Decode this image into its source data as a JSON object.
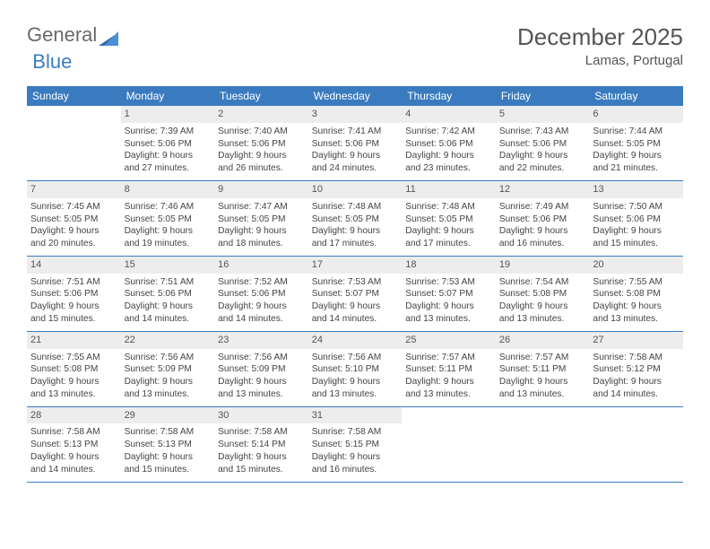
{
  "logo": {
    "part1": "General",
    "part2": "Blue"
  },
  "title": "December 2025",
  "location": "Lamas, Portugal",
  "colors": {
    "header_bg": "#3a7bbf",
    "daynum_bg": "#ededed",
    "rule": "#3a7bbf",
    "text": "#444444"
  },
  "daynames": [
    "Sunday",
    "Monday",
    "Tuesday",
    "Wednesday",
    "Thursday",
    "Friday",
    "Saturday"
  ],
  "weeks": [
    [
      null,
      {
        "n": "1",
        "sr": "Sunrise: 7:39 AM",
        "ss": "Sunset: 5:06 PM",
        "d1": "Daylight: 9 hours",
        "d2": "and 27 minutes."
      },
      {
        "n": "2",
        "sr": "Sunrise: 7:40 AM",
        "ss": "Sunset: 5:06 PM",
        "d1": "Daylight: 9 hours",
        "d2": "and 26 minutes."
      },
      {
        "n": "3",
        "sr": "Sunrise: 7:41 AM",
        "ss": "Sunset: 5:06 PM",
        "d1": "Daylight: 9 hours",
        "d2": "and 24 minutes."
      },
      {
        "n": "4",
        "sr": "Sunrise: 7:42 AM",
        "ss": "Sunset: 5:06 PM",
        "d1": "Daylight: 9 hours",
        "d2": "and 23 minutes."
      },
      {
        "n": "5",
        "sr": "Sunrise: 7:43 AM",
        "ss": "Sunset: 5:06 PM",
        "d1": "Daylight: 9 hours",
        "d2": "and 22 minutes."
      },
      {
        "n": "6",
        "sr": "Sunrise: 7:44 AM",
        "ss": "Sunset: 5:05 PM",
        "d1": "Daylight: 9 hours",
        "d2": "and 21 minutes."
      }
    ],
    [
      {
        "n": "7",
        "sr": "Sunrise: 7:45 AM",
        "ss": "Sunset: 5:05 PM",
        "d1": "Daylight: 9 hours",
        "d2": "and 20 minutes."
      },
      {
        "n": "8",
        "sr": "Sunrise: 7:46 AM",
        "ss": "Sunset: 5:05 PM",
        "d1": "Daylight: 9 hours",
        "d2": "and 19 minutes."
      },
      {
        "n": "9",
        "sr": "Sunrise: 7:47 AM",
        "ss": "Sunset: 5:05 PM",
        "d1": "Daylight: 9 hours",
        "d2": "and 18 minutes."
      },
      {
        "n": "10",
        "sr": "Sunrise: 7:48 AM",
        "ss": "Sunset: 5:05 PM",
        "d1": "Daylight: 9 hours",
        "d2": "and 17 minutes."
      },
      {
        "n": "11",
        "sr": "Sunrise: 7:48 AM",
        "ss": "Sunset: 5:05 PM",
        "d1": "Daylight: 9 hours",
        "d2": "and 17 minutes."
      },
      {
        "n": "12",
        "sr": "Sunrise: 7:49 AM",
        "ss": "Sunset: 5:06 PM",
        "d1": "Daylight: 9 hours",
        "d2": "and 16 minutes."
      },
      {
        "n": "13",
        "sr": "Sunrise: 7:50 AM",
        "ss": "Sunset: 5:06 PM",
        "d1": "Daylight: 9 hours",
        "d2": "and 15 minutes."
      }
    ],
    [
      {
        "n": "14",
        "sr": "Sunrise: 7:51 AM",
        "ss": "Sunset: 5:06 PM",
        "d1": "Daylight: 9 hours",
        "d2": "and 15 minutes."
      },
      {
        "n": "15",
        "sr": "Sunrise: 7:51 AM",
        "ss": "Sunset: 5:06 PM",
        "d1": "Daylight: 9 hours",
        "d2": "and 14 minutes."
      },
      {
        "n": "16",
        "sr": "Sunrise: 7:52 AM",
        "ss": "Sunset: 5:06 PM",
        "d1": "Daylight: 9 hours",
        "d2": "and 14 minutes."
      },
      {
        "n": "17",
        "sr": "Sunrise: 7:53 AM",
        "ss": "Sunset: 5:07 PM",
        "d1": "Daylight: 9 hours",
        "d2": "and 14 minutes."
      },
      {
        "n": "18",
        "sr": "Sunrise: 7:53 AM",
        "ss": "Sunset: 5:07 PM",
        "d1": "Daylight: 9 hours",
        "d2": "and 13 minutes."
      },
      {
        "n": "19",
        "sr": "Sunrise: 7:54 AM",
        "ss": "Sunset: 5:08 PM",
        "d1": "Daylight: 9 hours",
        "d2": "and 13 minutes."
      },
      {
        "n": "20",
        "sr": "Sunrise: 7:55 AM",
        "ss": "Sunset: 5:08 PM",
        "d1": "Daylight: 9 hours",
        "d2": "and 13 minutes."
      }
    ],
    [
      {
        "n": "21",
        "sr": "Sunrise: 7:55 AM",
        "ss": "Sunset: 5:08 PM",
        "d1": "Daylight: 9 hours",
        "d2": "and 13 minutes."
      },
      {
        "n": "22",
        "sr": "Sunrise: 7:56 AM",
        "ss": "Sunset: 5:09 PM",
        "d1": "Daylight: 9 hours",
        "d2": "and 13 minutes."
      },
      {
        "n": "23",
        "sr": "Sunrise: 7:56 AM",
        "ss": "Sunset: 5:09 PM",
        "d1": "Daylight: 9 hours",
        "d2": "and 13 minutes."
      },
      {
        "n": "24",
        "sr": "Sunrise: 7:56 AM",
        "ss": "Sunset: 5:10 PM",
        "d1": "Daylight: 9 hours",
        "d2": "and 13 minutes."
      },
      {
        "n": "25",
        "sr": "Sunrise: 7:57 AM",
        "ss": "Sunset: 5:11 PM",
        "d1": "Daylight: 9 hours",
        "d2": "and 13 minutes."
      },
      {
        "n": "26",
        "sr": "Sunrise: 7:57 AM",
        "ss": "Sunset: 5:11 PM",
        "d1": "Daylight: 9 hours",
        "d2": "and 13 minutes."
      },
      {
        "n": "27",
        "sr": "Sunrise: 7:58 AM",
        "ss": "Sunset: 5:12 PM",
        "d1": "Daylight: 9 hours",
        "d2": "and 14 minutes."
      }
    ],
    [
      {
        "n": "28",
        "sr": "Sunrise: 7:58 AM",
        "ss": "Sunset: 5:13 PM",
        "d1": "Daylight: 9 hours",
        "d2": "and 14 minutes."
      },
      {
        "n": "29",
        "sr": "Sunrise: 7:58 AM",
        "ss": "Sunset: 5:13 PM",
        "d1": "Daylight: 9 hours",
        "d2": "and 15 minutes."
      },
      {
        "n": "30",
        "sr": "Sunrise: 7:58 AM",
        "ss": "Sunset: 5:14 PM",
        "d1": "Daylight: 9 hours",
        "d2": "and 15 minutes."
      },
      {
        "n": "31",
        "sr": "Sunrise: 7:58 AM",
        "ss": "Sunset: 5:15 PM",
        "d1": "Daylight: 9 hours",
        "d2": "and 16 minutes."
      },
      null,
      null,
      null
    ]
  ]
}
